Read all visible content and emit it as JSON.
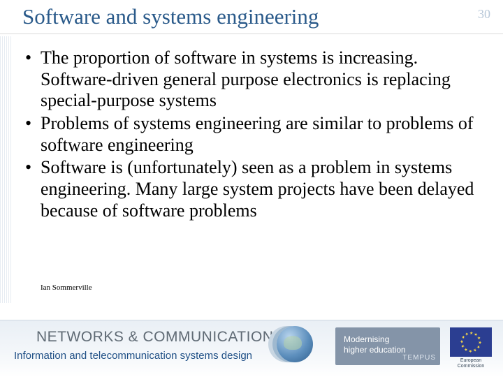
{
  "title": "Software and systems engineering",
  "page_number": "30",
  "bullets": [
    "The proportion of software in systems is increasing. Software-driven general purpose electronics is replacing special-purpose systems",
    "Problems of systems engineering are similar to problems of software engineering",
    "Software is (unfortunately) seen as a problem in systems engineering. Many large system projects have been delayed because of software problems"
  ],
  "attribution": "Ian Sommerville",
  "footer": {
    "brand_title": "NETWORKS & COMMUNICATIONS",
    "brand_subtitle": "Information and telecommunication systems design",
    "tempus_line1": "Modernising",
    "tempus_line2": "higher education",
    "tempus_footer": "TEMPUS",
    "eu_caption": "European Commission"
  },
  "colors": {
    "title_color": "#2a5a8a",
    "page_number_color": "#b7c7d8",
    "body_text_color": "#000000",
    "footer_brand_color": "#5f6a74",
    "footer_sub_color": "#1f4f86",
    "tempus_bg": "#8494a8",
    "eu_flag_bg": "#2b3e91",
    "eu_star_color": "#f8d94a",
    "background": "#ffffff"
  },
  "fonts": {
    "title_size_pt": 31,
    "body_size_pt": 26,
    "attribution_size_pt": 11,
    "footer_brand_size_pt": 21,
    "footer_sub_size_pt": 15
  }
}
